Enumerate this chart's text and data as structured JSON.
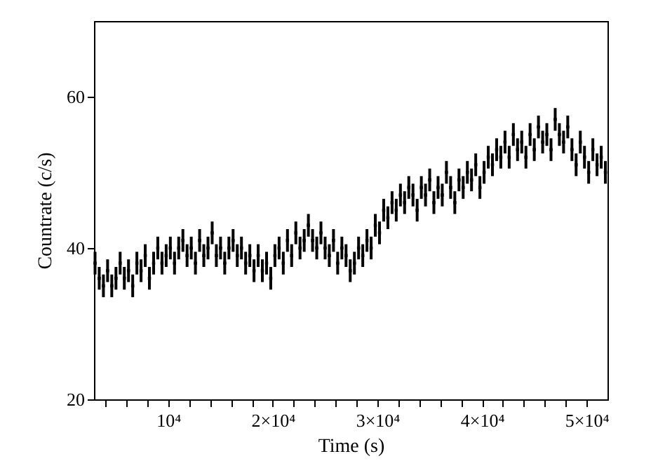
{
  "chart_data": {
    "type": "scatter",
    "xlabel": "Time (s)",
    "ylabel": "Countrate (c/s)",
    "marker": "square",
    "grid": false,
    "xlim": [
      2900,
      52000
    ],
    "ylim": [
      20,
      70
    ],
    "yticks": [
      20,
      40,
      60
    ],
    "xticks": [
      {
        "value": 4000,
        "label": null
      },
      {
        "value": 6000,
        "label": null
      },
      {
        "value": 8000,
        "label": null
      },
      {
        "value": 10000,
        "label": "10⁴"
      },
      {
        "value": 12000,
        "label": null
      },
      {
        "value": 14000,
        "label": null
      },
      {
        "value": 16000,
        "label": null
      },
      {
        "value": 18000,
        "label": null
      },
      {
        "value": 20000,
        "label": "2×10⁴"
      },
      {
        "value": 22000,
        "label": null
      },
      {
        "value": 24000,
        "label": null
      },
      {
        "value": 26000,
        "label": null
      },
      {
        "value": 28000,
        "label": null
      },
      {
        "value": 30000,
        "label": "3×10⁴"
      },
      {
        "value": 32000,
        "label": null
      },
      {
        "value": 34000,
        "label": null
      },
      {
        "value": 36000,
        "label": null
      },
      {
        "value": 38000,
        "label": null
      },
      {
        "value": 40000,
        "label": "4×10⁴"
      },
      {
        "value": 42000,
        "label": null
      },
      {
        "value": 44000,
        "label": null
      },
      {
        "value": 46000,
        "label": null
      },
      {
        "value": 48000,
        "label": null
      },
      {
        "value": 50000,
        "label": "5×10⁴"
      }
    ],
    "x": [
      3000,
      3400,
      3800,
      4200,
      4600,
      5000,
      5400,
      5800,
      6200,
      6600,
      7000,
      7400,
      7800,
      8200,
      8600,
      9000,
      9400,
      9800,
      10200,
      10600,
      11000,
      11400,
      11800,
      12200,
      12600,
      13000,
      13400,
      13800,
      14200,
      14600,
      15000,
      15400,
      15800,
      16200,
      16600,
      17000,
      17400,
      17800,
      18200,
      18600,
      19000,
      19400,
      19800,
      20200,
      20600,
      21000,
      21400,
      21800,
      22200,
      22600,
      23000,
      23400,
      23800,
      24200,
      24600,
      25000,
      25400,
      25800,
      26200,
      26600,
      27000,
      27400,
      27800,
      28200,
      28600,
      29000,
      29400,
      29800,
      30200,
      30600,
      31000,
      31400,
      31800,
      32200,
      32600,
      33000,
      33400,
      33800,
      34200,
      34600,
      35000,
      35400,
      35800,
      36200,
      36600,
      37000,
      37400,
      37800,
      38200,
      38600,
      39000,
      39400,
      39800,
      40200,
      40600,
      41000,
      41400,
      41800,
      42200,
      42600,
      43000,
      43400,
      43800,
      44200,
      44600,
      45000,
      45400,
      45800,
      46200,
      46600,
      47000,
      47400,
      47800,
      48200,
      48600,
      49000,
      49400,
      49800,
      50200,
      50600,
      51000,
      51400,
      51800
    ],
    "series": [
      {
        "color": "#000000",
        "values": [
          38,
          36,
          35,
          37,
          35,
          36,
          38,
          36,
          37,
          35,
          38,
          37,
          39,
          36,
          38,
          40,
          38,
          39,
          40,
          38,
          40,
          41,
          39,
          40,
          38,
          41,
          39,
          40,
          42,
          39,
          40,
          38,
          40,
          41,
          39,
          40,
          38,
          39,
          37,
          39,
          37,
          38,
          36,
          39,
          40,
          38,
          41,
          39,
          42,
          40,
          41,
          43,
          41,
          40,
          42,
          40,
          39,
          41,
          38,
          40,
          39,
          37,
          38,
          40,
          39,
          41,
          40,
          43,
          42,
          45,
          44,
          46,
          45,
          47,
          46,
          48,
          47,
          45,
          48,
          47,
          49,
          46,
          48,
          47,
          50,
          48,
          46,
          49,
          48,
          50,
          49,
          51,
          48,
          50,
          52,
          51,
          53,
          52,
          54,
          52,
          55,
          53,
          54,
          52,
          55,
          53,
          56,
          54,
          55,
          53,
          57,
          55,
          54,
          56,
          53,
          51,
          54,
          52,
          50,
          53,
          51,
          52,
          50
        ],
        "errors": [
          1.5,
          1.5,
          1.5,
          1.5,
          1.5,
          1.5,
          1.5,
          1.5,
          1.5,
          1.5,
          1.5,
          1.5,
          1.5,
          1.5,
          1.5,
          1.5,
          1.5,
          1.5,
          1.5,
          1.5,
          1.5,
          1.5,
          1.5,
          1.5,
          1.5,
          1.5,
          1.5,
          1.5,
          1.5,
          1.5,
          1.5,
          1.5,
          1.5,
          1.5,
          1.5,
          1.5,
          1.5,
          1.5,
          1.5,
          1.5,
          1.5,
          1.5,
          1.5,
          1.5,
          1.5,
          1.5,
          1.5,
          1.5,
          1.5,
          1.5,
          1.5,
          1.5,
          1.5,
          1.5,
          1.5,
          1.5,
          1.5,
          1.5,
          1.5,
          1.5,
          1.5,
          1.5,
          1.5,
          1.5,
          1.5,
          1.5,
          1.5,
          1.5,
          1.5,
          1.5,
          1.5,
          1.5,
          1.5,
          1.5,
          1.5,
          1.5,
          1.5,
          1.5,
          1.5,
          1.5,
          1.5,
          1.5,
          1.5,
          1.5,
          1.5,
          1.5,
          1.5,
          1.5,
          1.5,
          1.5,
          1.5,
          1.5,
          1.5,
          1.5,
          1.5,
          1.5,
          1.5,
          1.5,
          1.5,
          1.5,
          1.5,
          1.5,
          1.5,
          1.5,
          1.5,
          1.5,
          1.5,
          1.5,
          1.5,
          1.5,
          1.5,
          1.5,
          1.5,
          1.5,
          1.5,
          1.5,
          1.5,
          1.5,
          1.5,
          1.5,
          1.5,
          1.5,
          1.5
        ]
      }
    ]
  }
}
